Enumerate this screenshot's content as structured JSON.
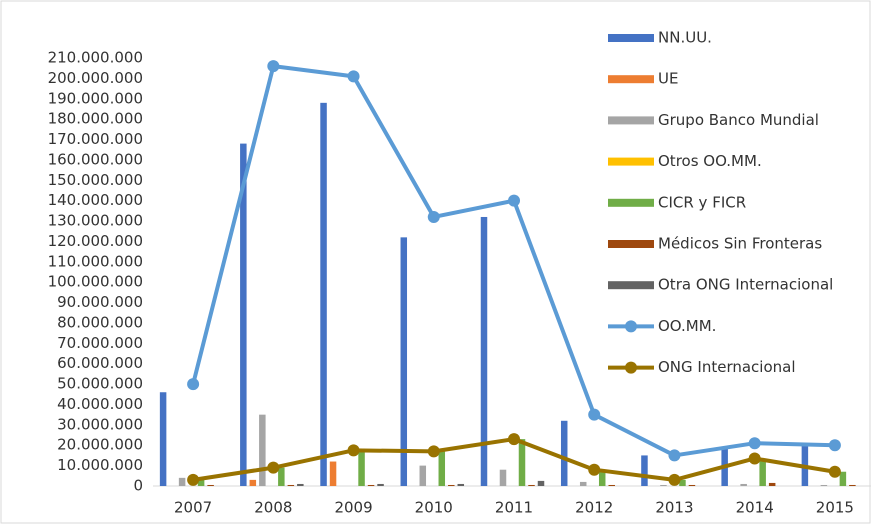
{
  "chart_data": {
    "type": "bar",
    "categories": [
      "2007",
      "2008",
      "2009",
      "2010",
      "2011",
      "2012",
      "2013",
      "2014",
      "2015"
    ],
    "series": [
      {
        "name": "NN.UU.",
        "color": "#4472c4",
        "values": [
          46000000,
          168000000,
          188000000,
          122000000,
          132000000,
          32000000,
          15000000,
          19000000,
          20000000
        ]
      },
      {
        "name": "UE",
        "color": "#ed7d31",
        "values": [
          0,
          3000000,
          12000000,
          0,
          0,
          0,
          0,
          0,
          0
        ]
      },
      {
        "name": "Grupo Banco Mundial",
        "color": "#a5a5a5",
        "values": [
          4000000,
          35000000,
          0,
          10000000,
          8000000,
          2000000,
          500000,
          1000000,
          500000
        ]
      },
      {
        "name": "Otros OO.MM.",
        "color": "#ffc000",
        "values": [
          0,
          0,
          0,
          0,
          0,
          0,
          0,
          0,
          0
        ]
      },
      {
        "name": "CICR y FICR",
        "color": "#70ad47",
        "values": [
          3000000,
          9000000,
          17000000,
          17000000,
          23000000,
          8000000,
          3000000,
          13000000,
          7000000
        ]
      },
      {
        "name": "Médicos Sin Fronteras",
        "color": "#9e480e",
        "values": [
          500000,
          500000,
          500000,
          500000,
          500000,
          500000,
          500000,
          1500000,
          500000
        ]
      },
      {
        "name": "Otra ONG Internacional",
        "color": "#636363",
        "values": [
          0,
          1000000,
          1000000,
          1000000,
          2500000,
          0,
          0,
          0,
          0
        ]
      },
      {
        "name": "OO.MM.",
        "color": "#5b9bd5",
        "type": "line",
        "values": [
          50000000,
          206000000,
          201000000,
          132000000,
          140000000,
          35000000,
          15000000,
          21000000,
          20000000
        ]
      },
      {
        "name": "ONG Internacional",
        "color": "#997300",
        "type": "line",
        "values": [
          3000000,
          9000000,
          17500000,
          17000000,
          23000000,
          8000000,
          3000000,
          13500000,
          7000000
        ]
      }
    ],
    "ylim": [
      0,
      210000000
    ],
    "yticks": [
      0,
      {
        "value": 10000000,
        "label": "10.000.000"
      },
      {
        "value": 20000000,
        "label": "20.000.000"
      },
      {
        "value": 30000000,
        "label": "30.000.000"
      },
      {
        "value": 40000000,
        "label": "40.000.000"
      },
      {
        "value": 50000000,
        "label": "50.000.000"
      },
      {
        "value": 60000000,
        "label": "60.000.000"
      },
      {
        "value": 70000000,
        "label": "70.000.000"
      },
      {
        "value": 80000000,
        "label": "80.000.000"
      },
      {
        "value": 90000000,
        "label": "90.000.000"
      },
      {
        "value": 100000000,
        "label": "100.000.000"
      },
      {
        "value": 110000000,
        "label": "110.000.000"
      },
      {
        "value": 120000000,
        "label": "120.000.000"
      },
      {
        "value": 130000000,
        "label": "130.000.000"
      },
      {
        "value": 140000000,
        "label": "140.000.000"
      },
      {
        "value": 150000000,
        "label": "150.000.000"
      },
      {
        "value": 160000000,
        "label": "160.000.000"
      },
      {
        "value": 170000000,
        "label": "170.000.000"
      },
      {
        "value": 180000000,
        "label": "180.000.000"
      },
      {
        "value": 190000000,
        "label": "190.000.000"
      },
      {
        "value": 200000000,
        "label": "200.000.000"
      },
      {
        "value": 210000000,
        "label": "210.000.000"
      }
    ],
    "grid": false,
    "legend": "right"
  }
}
